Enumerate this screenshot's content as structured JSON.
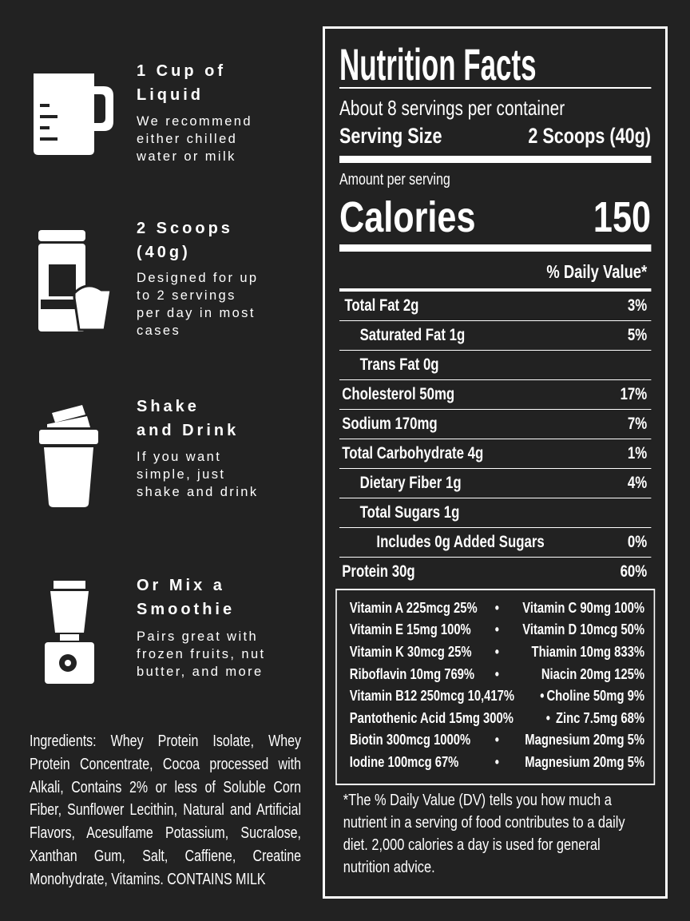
{
  "steps": [
    {
      "icon": "measuring-cup-icon",
      "title_l1": "1 Cup of",
      "title_l2": "Liquid",
      "desc": [
        "We recommend",
        "either chilled",
        "water or milk"
      ]
    },
    {
      "icon": "protein-scoop-icon",
      "title_l1": "2 Scoops",
      "title_l2": "(40g)",
      "desc": [
        "Designed for up",
        "to 2 servings",
        "per day in most",
        "cases"
      ]
    },
    {
      "icon": "shaker-bottle-icon",
      "title_l1": "Shake",
      "title_l2": "and Drink",
      "desc": [
        "If you want",
        "simple, just",
        "shake and drink"
      ]
    },
    {
      "icon": "blender-icon",
      "title_l1": "Or Mix a",
      "title_l2": "Smoothie",
      "desc": [
        "Pairs great with",
        "frozen fruits, nut",
        "butter, and more"
      ]
    }
  ],
  "ingredients": "Ingredients: Whey Protein Isolate, Whey Protein Concentrate, Cocoa processed with Alkali, Contains 2% or less of Soluble Corn Fiber, Sunflower Lecithin, Natural and Artificial Flavors, Acesulfame Potassium, Sucralose, Xanthan Gum, Salt, Caffiene, Creatine Monohydrate, Vitamins. CONTAINS MILK",
  "label": {
    "title": "Nutrition Facts",
    "servings": "About 8 servings per container",
    "serving_size_label": "Serving Size",
    "serving_size_value": "2 Scoops (40g)",
    "amount_per_serving": "Amount per serving",
    "calories_label": "Calories",
    "calories_value": "150",
    "dv_header": "% Daily Value*",
    "rows": [
      {
        "name": "Total Fat 2g",
        "dv": "3%"
      },
      {
        "name": "Saturated Fat 1g",
        "dv": "5%"
      },
      {
        "name": "Trans Fat 0g",
        "dv": ""
      },
      {
        "name": "Cholesterol 50mg",
        "dv": "17%"
      },
      {
        "name": "Sodium 170mg",
        "dv": "7%"
      },
      {
        "name": "Total Carbohydrate 4g",
        "dv": "1%"
      },
      {
        "name": "Dietary Fiber 1g",
        "dv": "4%"
      },
      {
        "name": "Total Sugars 1g",
        "dv": ""
      },
      {
        "name": "Includes 0g Added Sugars",
        "dv": "0%"
      },
      {
        "name": "Protein 30g",
        "dv": "60%"
      }
    ],
    "vitamins": [
      [
        "Vitamin A 225mcg 25%",
        "Vitamin C 90mg 100%"
      ],
      [
        "Vitamin E 15mg 100%",
        "Vitamin D 10mcg 50%"
      ],
      [
        "Vitamin K 30mcg 25%",
        "Thiamin 10mg 833%"
      ],
      [
        "Riboflavin 10mg 769%",
        "Niacin 20mg 125%"
      ],
      [
        "Vitamin B12 250mcg 10,417%",
        "Choline 50mg 9%"
      ],
      [
        "Pantothenic Acid 15mg 300%",
        "Zinc 7.5mg 68%"
      ],
      [
        "Biotin 300mcg 1000%",
        "Magnesium 20mg 5%"
      ],
      [
        "Iodine 100mcg 67%",
        "Magnesium 20mg 5%"
      ]
    ],
    "separator": "•",
    "footnote": [
      "*The % Daily Value (DV) tells you how much a",
      "nutrient in a serving of food contributes to a daily",
      "diet. 2,000 calories a day is used for general",
      "nutrition advice."
    ]
  }
}
